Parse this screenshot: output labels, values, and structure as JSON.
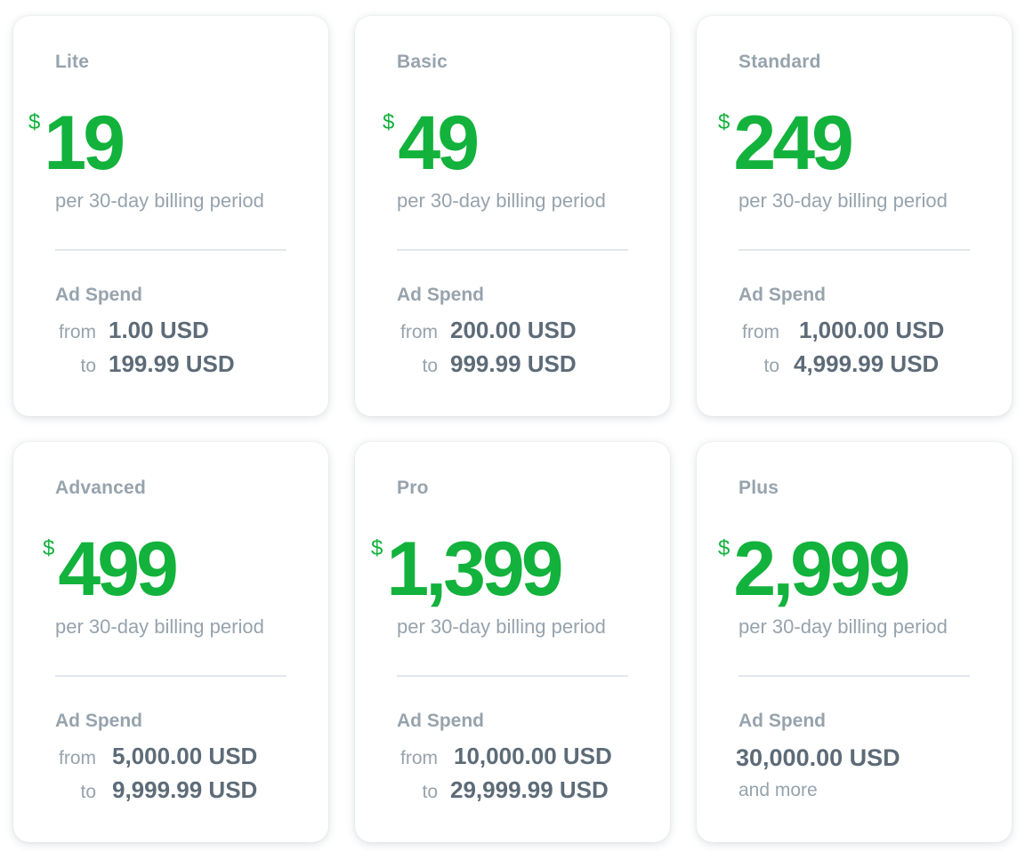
{
  "plans": [
    {
      "name": "Lite",
      "currency": "$",
      "price": "19",
      "period": "per 30-day billing period",
      "ad_spend_label": "Ad Spend",
      "from_word": "from",
      "from_value": "1.00 USD",
      "to_word": "to",
      "to_value": "199.99 USD"
    },
    {
      "name": "Basic",
      "currency": "$",
      "price": "49",
      "period": "per 30-day billing period",
      "ad_spend_label": "Ad Spend",
      "from_word": "from",
      "from_value": "200.00 USD",
      "to_word": "to",
      "to_value": "999.99 USD"
    },
    {
      "name": "Standard",
      "currency": "$",
      "price": "249",
      "period": "per 30-day billing period",
      "ad_spend_label": "Ad Spend",
      "from_word": "from",
      "from_value": "1,000.00 USD",
      "to_word": "to",
      "to_value": "4,999.99 USD"
    },
    {
      "name": "Advanced",
      "currency": "$",
      "price": "499",
      "period": "per 30-day billing period",
      "ad_spend_label": "Ad Spend",
      "from_word": "from",
      "from_value": "5,000.00 USD",
      "to_word": "to",
      "to_value": "9,999.99 USD"
    },
    {
      "name": "Pro",
      "currency": "$",
      "price": "1,399",
      "period": "per 30-day billing period",
      "ad_spend_label": "Ad Spend",
      "from_word": "from",
      "from_value": "10,000.00 USD",
      "to_word": "to",
      "to_value": "29,999.99 USD"
    },
    {
      "name": "Plus",
      "currency": "$",
      "price": "2,999",
      "period": "per 30-day billing period",
      "ad_spend_label": "Ad Spend",
      "value": "30,000.00 USD",
      "suffix": "and more"
    }
  ],
  "colors": {
    "price_green": "#12b23c",
    "muted_text": "#97a3ad",
    "value_text": "#5d6b78",
    "divider": "#e3e7ea"
  }
}
